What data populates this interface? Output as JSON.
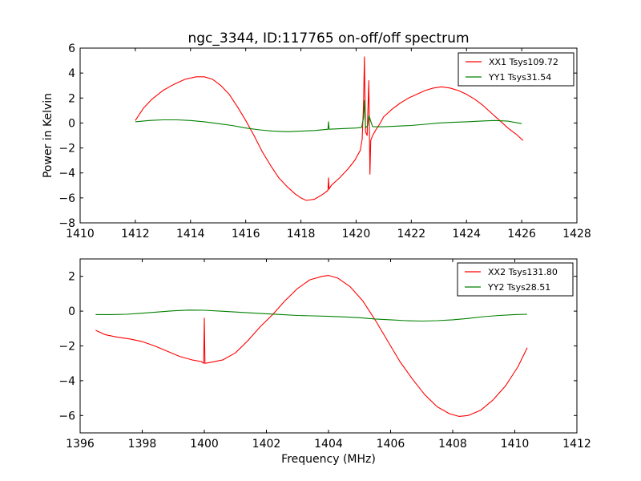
{
  "figure": {
    "title": "ngc_3344, ID:117765 on-off/off spectrum"
  },
  "chart_data": [
    {
      "type": "line",
      "title": "ngc_3344, ID:117765 on-off/off spectrum",
      "xlabel": "",
      "ylabel": "Power in Kelvin",
      "xlim": [
        1410,
        1428
      ],
      "ylim": [
        -8,
        6
      ],
      "xticks": [
        1410,
        1412,
        1414,
        1416,
        1418,
        1420,
        1422,
        1424,
        1426,
        1428
      ],
      "yticks": [
        -8,
        -6,
        -4,
        -2,
        0,
        2,
        4,
        6
      ],
      "grid": false,
      "legend_position": "top-right",
      "series": [
        {
          "name": "XX1 Tsys109.72",
          "color": "#ff0000",
          "x": [
            1412.0,
            1412.3,
            1412.6,
            1413.0,
            1413.4,
            1413.8,
            1414.2,
            1414.5,
            1414.8,
            1415.1,
            1415.4,
            1415.7,
            1416.0,
            1416.3,
            1416.6,
            1416.9,
            1417.2,
            1417.5,
            1417.8,
            1418.0,
            1418.2,
            1418.5,
            1418.8,
            1418.98,
            1419.0,
            1419.02,
            1419.1,
            1419.4,
            1419.7,
            1419.95,
            1420.15,
            1420.22,
            1420.27,
            1420.3,
            1420.34,
            1420.4,
            1420.46,
            1420.5,
            1420.53,
            1420.6,
            1420.7,
            1420.85,
            1421.0,
            1421.3,
            1421.6,
            1421.9,
            1422.2,
            1422.5,
            1422.8,
            1423.1,
            1423.4,
            1423.7,
            1424.0,
            1424.3,
            1424.6,
            1424.9,
            1425.2,
            1425.5,
            1425.8,
            1426.05
          ],
          "values": [
            0.2,
            1.2,
            1.9,
            2.6,
            3.1,
            3.5,
            3.7,
            3.7,
            3.5,
            3.0,
            2.3,
            1.3,
            0.2,
            -1.0,
            -2.3,
            -3.4,
            -4.4,
            -5.1,
            -5.7,
            -6.0,
            -6.2,
            -6.1,
            -5.7,
            -5.4,
            -4.4,
            -5.3,
            -5.0,
            -4.4,
            -3.7,
            -3.0,
            -2.2,
            -1.3,
            1.5,
            5.3,
            -0.7,
            -1.0,
            3.4,
            -4.1,
            -1.4,
            -1.0,
            -0.6,
            -0.1,
            0.5,
            1.1,
            1.6,
            2.0,
            2.3,
            2.6,
            2.8,
            2.9,
            2.8,
            2.6,
            2.3,
            1.9,
            1.4,
            0.8,
            0.2,
            -0.4,
            -0.9,
            -1.4
          ]
        },
        {
          "name": "YY1 Tsys31.54",
          "color": "#008000",
          "x": [
            1412.0,
            1412.5,
            1413.0,
            1413.5,
            1414.0,
            1414.5,
            1415.0,
            1415.5,
            1416.0,
            1416.5,
            1417.0,
            1417.5,
            1418.0,
            1418.5,
            1418.98,
            1419.0,
            1419.02,
            1419.5,
            1420.0,
            1420.2,
            1420.27,
            1420.3,
            1420.34,
            1420.42,
            1420.47,
            1420.52,
            1420.6,
            1421.0,
            1421.5,
            1422.0,
            1422.5,
            1423.0,
            1423.5,
            1424.0,
            1424.5,
            1425.0,
            1425.5,
            1426.0
          ],
          "values": [
            0.1,
            0.2,
            0.25,
            0.25,
            0.2,
            0.1,
            -0.05,
            -0.2,
            -0.4,
            -0.55,
            -0.65,
            -0.7,
            -0.65,
            -0.6,
            -0.5,
            0.1,
            -0.5,
            -0.45,
            -0.4,
            -0.35,
            0.4,
            1.8,
            -0.4,
            -0.2,
            0.6,
            0.2,
            -0.3,
            -0.3,
            -0.25,
            -0.2,
            -0.1,
            0.0,
            0.05,
            0.1,
            0.15,
            0.2,
            0.15,
            -0.05
          ]
        }
      ]
    },
    {
      "type": "line",
      "title": "",
      "xlabel": "Frequency (MHz)",
      "ylabel": "",
      "xlim": [
        1396,
        1412
      ],
      "ylim": [
        -7,
        3
      ],
      "xticks": [
        1396,
        1398,
        1400,
        1402,
        1404,
        1406,
        1408,
        1410,
        1412
      ],
      "yticks": [
        -6,
        -4,
        -2,
        0,
        2
      ],
      "grid": false,
      "legend_position": "top-right",
      "series": [
        {
          "name": "XX2 Tsys131.80",
          "color": "#ff0000",
          "x": [
            1396.5,
            1396.8,
            1397.2,
            1397.6,
            1398.0,
            1398.4,
            1398.8,
            1399.2,
            1399.6,
            1399.9,
            1399.98,
            1400.0,
            1400.02,
            1400.2,
            1400.6,
            1401.0,
            1401.4,
            1401.8,
            1402.2,
            1402.6,
            1403.0,
            1403.4,
            1403.8,
            1404.0,
            1404.3,
            1404.7,
            1405.1,
            1405.5,
            1405.9,
            1406.3,
            1406.7,
            1407.1,
            1407.5,
            1407.9,
            1408.2,
            1408.5,
            1408.9,
            1409.3,
            1409.7,
            1410.1,
            1410.4
          ],
          "values": [
            -1.1,
            -1.35,
            -1.5,
            -1.6,
            -1.75,
            -2.0,
            -2.3,
            -2.6,
            -2.8,
            -2.9,
            -3.0,
            -0.4,
            -3.0,
            -2.95,
            -2.8,
            -2.4,
            -1.7,
            -0.9,
            -0.2,
            0.6,
            1.3,
            1.8,
            2.0,
            2.05,
            1.9,
            1.4,
            0.6,
            -0.5,
            -1.7,
            -2.9,
            -3.9,
            -4.8,
            -5.5,
            -5.9,
            -6.05,
            -6.0,
            -5.7,
            -5.1,
            -4.3,
            -3.2,
            -2.1
          ]
        },
        {
          "name": "YY2 Tsys28.51",
          "color": "#008000",
          "x": [
            1396.5,
            1397.0,
            1397.5,
            1398.0,
            1398.5,
            1399.0,
            1399.5,
            1400.0,
            1400.5,
            1401.0,
            1401.5,
            1402.0,
            1402.5,
            1403.0,
            1403.5,
            1404.0,
            1404.5,
            1405.0,
            1405.5,
            1406.0,
            1406.5,
            1407.0,
            1407.5,
            1408.0,
            1408.5,
            1409.0,
            1409.5,
            1410.0,
            1410.4
          ],
          "values": [
            -0.2,
            -0.2,
            -0.18,
            -0.12,
            -0.05,
            0.02,
            0.06,
            0.05,
            0.0,
            -0.05,
            -0.1,
            -0.15,
            -0.2,
            -0.25,
            -0.27,
            -0.3,
            -0.33,
            -0.38,
            -0.45,
            -0.5,
            -0.55,
            -0.57,
            -0.55,
            -0.5,
            -0.42,
            -0.32,
            -0.25,
            -0.2,
            -0.18
          ]
        }
      ]
    }
  ]
}
